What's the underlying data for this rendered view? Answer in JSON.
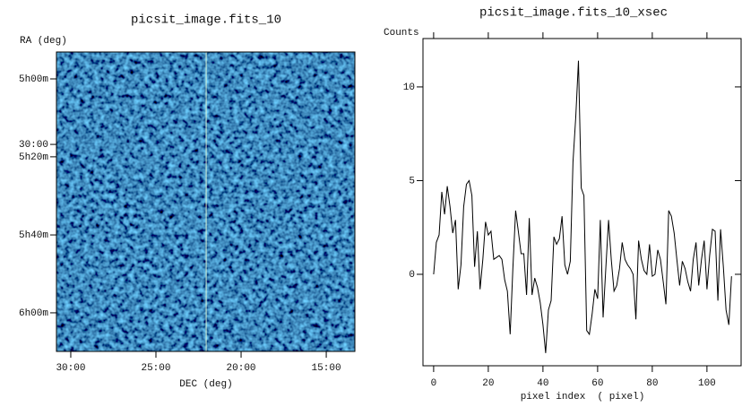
{
  "chart_data": [
    {
      "type": "image",
      "title": "picsit_image.fits_10",
      "x_label": "DEC (deg)",
      "y_label": "RA (deg)",
      "xlim": [
        30.84,
        13.32
      ],
      "ylim": [
        6.165,
        4.885
      ],
      "xticks": [
        {
          "value": 30,
          "label": "30:00"
        },
        {
          "value": 25,
          "label": "25:00"
        },
        {
          "value": 20,
          "label": "20:00"
        },
        {
          "value": 15,
          "label": "15:00"
        }
      ],
      "yticks": [
        {
          "value": 5.0,
          "label": "5h00m"
        },
        {
          "value": 5.28,
          "label": "30:00"
        },
        {
          "value": 5.333,
          "label": "5h20m"
        },
        {
          "value": 5.667,
          "label": "5h40m"
        },
        {
          "value": 6.0,
          "label": "6h00m"
        }
      ],
      "cursor_x": 22.05,
      "cursor_color": "#d8f5d8"
    },
    {
      "type": "line",
      "title": "picsit_image.fits_10_xsec",
      "x_label": "pixel index  ( pixel)",
      "y_label": "Counts",
      "xlim": [
        -3.9,
        112.5
      ],
      "ylim": [
        -4.88,
        12.58
      ],
      "xticks": [
        0,
        20,
        40,
        60,
        80,
        100
      ],
      "yticks": [
        0,
        5,
        10
      ],
      "color": "#000000",
      "x": [
        0,
        1,
        2,
        3,
        4,
        5,
        6,
        7,
        8,
        9,
        10,
        11,
        12,
        13,
        14,
        15,
        16,
        17,
        18,
        19,
        20,
        21,
        22,
        23,
        24,
        25,
        26,
        27,
        28,
        29,
        30,
        31,
        32,
        33,
        34,
        35,
        36,
        37,
        38,
        39,
        40,
        41,
        42,
        43,
        44,
        45,
        46,
        47,
        48,
        49,
        50,
        51,
        52,
        53,
        54,
        55,
        56,
        57,
        58,
        59,
        60,
        61,
        62,
        63,
        64,
        65,
        66,
        67,
        68,
        69,
        70,
        71,
        72,
        73,
        74,
        75,
        76,
        77,
        78,
        79,
        80,
        81,
        82,
        83,
        84,
        85,
        86,
        87,
        88,
        89,
        90,
        91,
        92,
        93,
        94,
        95,
        96,
        97,
        98,
        99,
        100,
        101,
        102,
        103,
        104,
        105,
        106,
        107,
        108,
        109
      ],
      "values": [
        0,
        1.7,
        2.1,
        4.4,
        3.2,
        4.7,
        3.6,
        2.2,
        2.9,
        -0.8,
        0.5,
        3.6,
        4.8,
        5.0,
        4.2,
        0.4,
        2.3,
        -0.8,
        0.8,
        2.8,
        2.1,
        2.3,
        0.8,
        0.9,
        1.0,
        0.8,
        -0.3,
        -0.9,
        -3.2,
        0.3,
        3.4,
        2.3,
        1.1,
        1.1,
        -1.1,
        3.0,
        -1.1,
        -0.2,
        -0.7,
        -1.5,
        -2.7,
        -4.2,
        -1.9,
        -1.4,
        2.0,
        1.6,
        1.9,
        3.1,
        0.5,
        0.0,
        0.7,
        6.0,
        8.4,
        11.4,
        4.6,
        4.2,
        -3.0,
        -3.2,
        -2.1,
        -0.8,
        -1.3,
        2.9,
        -2.3,
        0.3,
        2.9,
        0.8,
        -0.9,
        -0.6,
        0.3,
        1.7,
        0.8,
        0.5,
        0.3,
        0.0,
        -2.4,
        1.8,
        0.8,
        0.2,
        0.0,
        1.6,
        -0.1,
        0.0,
        1.3,
        0.8,
        -0.4,
        -1.6,
        3.4,
        3.1,
        2.2,
        0.8,
        -0.6,
        0.7,
        0.3,
        -0.4,
        -0.9,
        0.8,
        1.7,
        -0.6,
        0.8,
        1.8,
        -0.8,
        1.0,
        2.4,
        2.3,
        -1.4,
        2.4,
        0.4,
        -1.9,
        -2.7,
        -0.1
      ]
    }
  ]
}
